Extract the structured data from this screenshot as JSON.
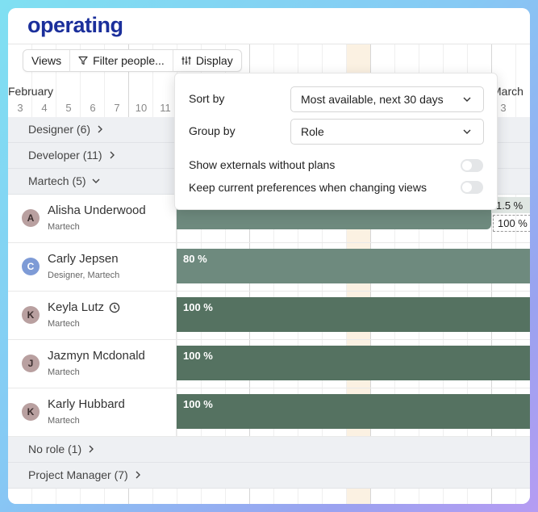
{
  "app": {
    "logo_text": "operating"
  },
  "toolbar": {
    "views_label": "Views",
    "filter_label": "Filter people...",
    "display_label": "Display"
  },
  "timeline": {
    "month_left": "February",
    "month_right": "March",
    "days_left": [
      "3",
      "4",
      "5",
      "6",
      "7",
      "10",
      "11"
    ],
    "days_right": [
      "3"
    ]
  },
  "groups": {
    "designer": {
      "label": "Designer (6)"
    },
    "developer": {
      "label": "Developer (11)"
    },
    "martech": {
      "label": "Martech (5)"
    },
    "no_role": {
      "label": "No role (1)"
    },
    "project_manager": {
      "label": "Project Manager (7)"
    }
  },
  "people": [
    {
      "initial": "A",
      "name": "Alisha Underwood",
      "role": "Martech",
      "avatar_color": "#b9a0a0",
      "bar_label": "",
      "bar_label_right": "1.5 %",
      "bar_label_right_2": "100 %"
    },
    {
      "initial": "C",
      "name": "Carly Jepsen",
      "role": "Designer, Martech",
      "avatar_color": "#7e9bd6",
      "bar_label": "80 %"
    },
    {
      "initial": "K",
      "name": "Keyla Lutz",
      "role": "Martech",
      "avatar_color": "#b9a0a0",
      "bar_label": "100 %"
    },
    {
      "initial": "J",
      "name": "Jazmyn Mcdonald",
      "role": "Martech",
      "avatar_color": "#b9a0a0",
      "bar_label": "100 %"
    },
    {
      "initial": "K",
      "name": "Karly Hubbard",
      "role": "Martech",
      "avatar_color": "#b9a0a0",
      "bar_label": "100 %"
    }
  ],
  "display_panel": {
    "sort_by_label": "Sort by",
    "sort_by_value": "Most available, next 30 days",
    "group_by_label": "Group by",
    "group_by_value": "Role",
    "show_externals_label": "Show externals without plans",
    "show_externals_on": false,
    "keep_prefs_label": "Keep current preferences when changing views",
    "keep_prefs_on": false
  },
  "colors": {
    "bar_light": "#6e8a7e",
    "bar_dark": "#557261",
    "logo": "#1b2f9b",
    "highlight_column": "#fbf1e2"
  }
}
